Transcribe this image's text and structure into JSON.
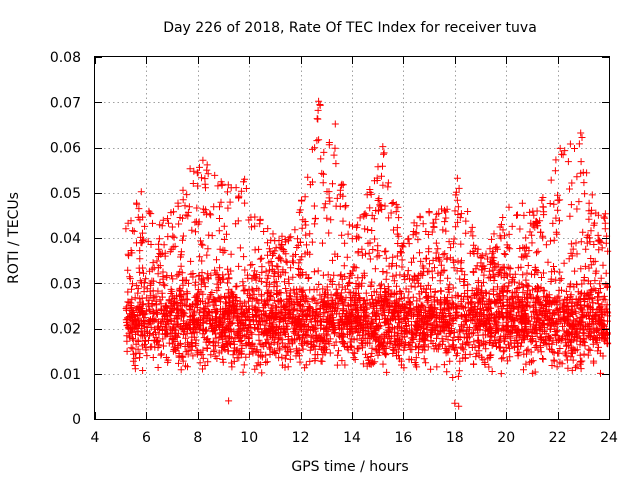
{
  "chart_data": {
    "type": "scatter",
    "title": "Day 226 of 2018, Rate Of TEC Index for receiver tuva",
    "xlabel": "GPS time / hours",
    "ylabel": "ROTI / TECUs",
    "xlim": [
      4,
      24
    ],
    "ylim": [
      0,
      0.08
    ],
    "xticks": [
      4,
      6,
      8,
      10,
      12,
      14,
      16,
      18,
      20,
      22,
      24
    ],
    "yticks": [
      0,
      0.01,
      0.02,
      0.03,
      0.04,
      0.05,
      0.06,
      0.07,
      0.08
    ],
    "xtick_labels": [
      "4",
      "6",
      "8",
      "10",
      "12",
      "14",
      "16",
      "18",
      "20",
      "22",
      "24"
    ],
    "ytick_labels": [
      "0",
      "0.01",
      "0.02",
      "0.03",
      "0.04",
      "0.05",
      "0.06",
      "0.07",
      "0.08"
    ],
    "grid": true,
    "marker": "+",
    "color": "#ff0000",
    "data_start_hour": 5.2,
    "data_end_hour": 24,
    "bulk_range": [
      0.005,
      0.035
    ],
    "envelope": [
      {
        "x": 5.3,
        "y": 0.044
      },
      {
        "x": 5.8,
        "y": 0.05
      },
      {
        "x": 6.5,
        "y": 0.043
      },
      {
        "x": 7.2,
        "y": 0.048
      },
      {
        "x": 7.8,
        "y": 0.055
      },
      {
        "x": 8.3,
        "y": 0.057
      },
      {
        "x": 9.0,
        "y": 0.052
      },
      {
        "x": 9.8,
        "y": 0.054
      },
      {
        "x": 10.5,
        "y": 0.043
      },
      {
        "x": 11.5,
        "y": 0.04
      },
      {
        "x": 12.2,
        "y": 0.051
      },
      {
        "x": 12.7,
        "y": 0.07
      },
      {
        "x": 13.3,
        "y": 0.065
      },
      {
        "x": 14.0,
        "y": 0.043
      },
      {
        "x": 15.2,
        "y": 0.06
      },
      {
        "x": 16.0,
        "y": 0.042
      },
      {
        "x": 17.0,
        "y": 0.047
      },
      {
        "x": 17.9,
        "y": 0.047
      },
      {
        "x": 18.2,
        "y": 0.053
      },
      {
        "x": 19.0,
        "y": 0.036
      },
      {
        "x": 20.2,
        "y": 0.049
      },
      {
        "x": 21.3,
        "y": 0.047
      },
      {
        "x": 22.1,
        "y": 0.06
      },
      {
        "x": 22.9,
        "y": 0.063
      },
      {
        "x": 23.6,
        "y": 0.046
      }
    ],
    "notable_points": [
      {
        "x": 12.7,
        "y": 0.0702
      },
      {
        "x": 12.75,
        "y": 0.0695
      },
      {
        "x": 12.68,
        "y": 0.0682
      },
      {
        "x": 13.35,
        "y": 0.0652
      },
      {
        "x": 12.7,
        "y": 0.0617
      },
      {
        "x": 15.2,
        "y": 0.0602
      },
      {
        "x": 15.25,
        "y": 0.0588
      },
      {
        "x": 22.1,
        "y": 0.0598
      },
      {
        "x": 22.15,
        "y": 0.0585
      },
      {
        "x": 22.9,
        "y": 0.0632
      },
      {
        "x": 22.95,
        "y": 0.0622
      },
      {
        "x": 22.85,
        "y": 0.0608
      },
      {
        "x": 8.2,
        "y": 0.0572
      },
      {
        "x": 7.7,
        "y": 0.0553
      },
      {
        "x": 18.1,
        "y": 0.0532
      },
      {
        "x": 23.0,
        "y": 0.0545
      },
      {
        "x": 5.8,
        "y": 0.0502
      },
      {
        "x": 18.15,
        "y": 0.0028
      },
      {
        "x": 18.0,
        "y": 0.0035
      },
      {
        "x": 9.2,
        "y": 0.004
      }
    ]
  }
}
